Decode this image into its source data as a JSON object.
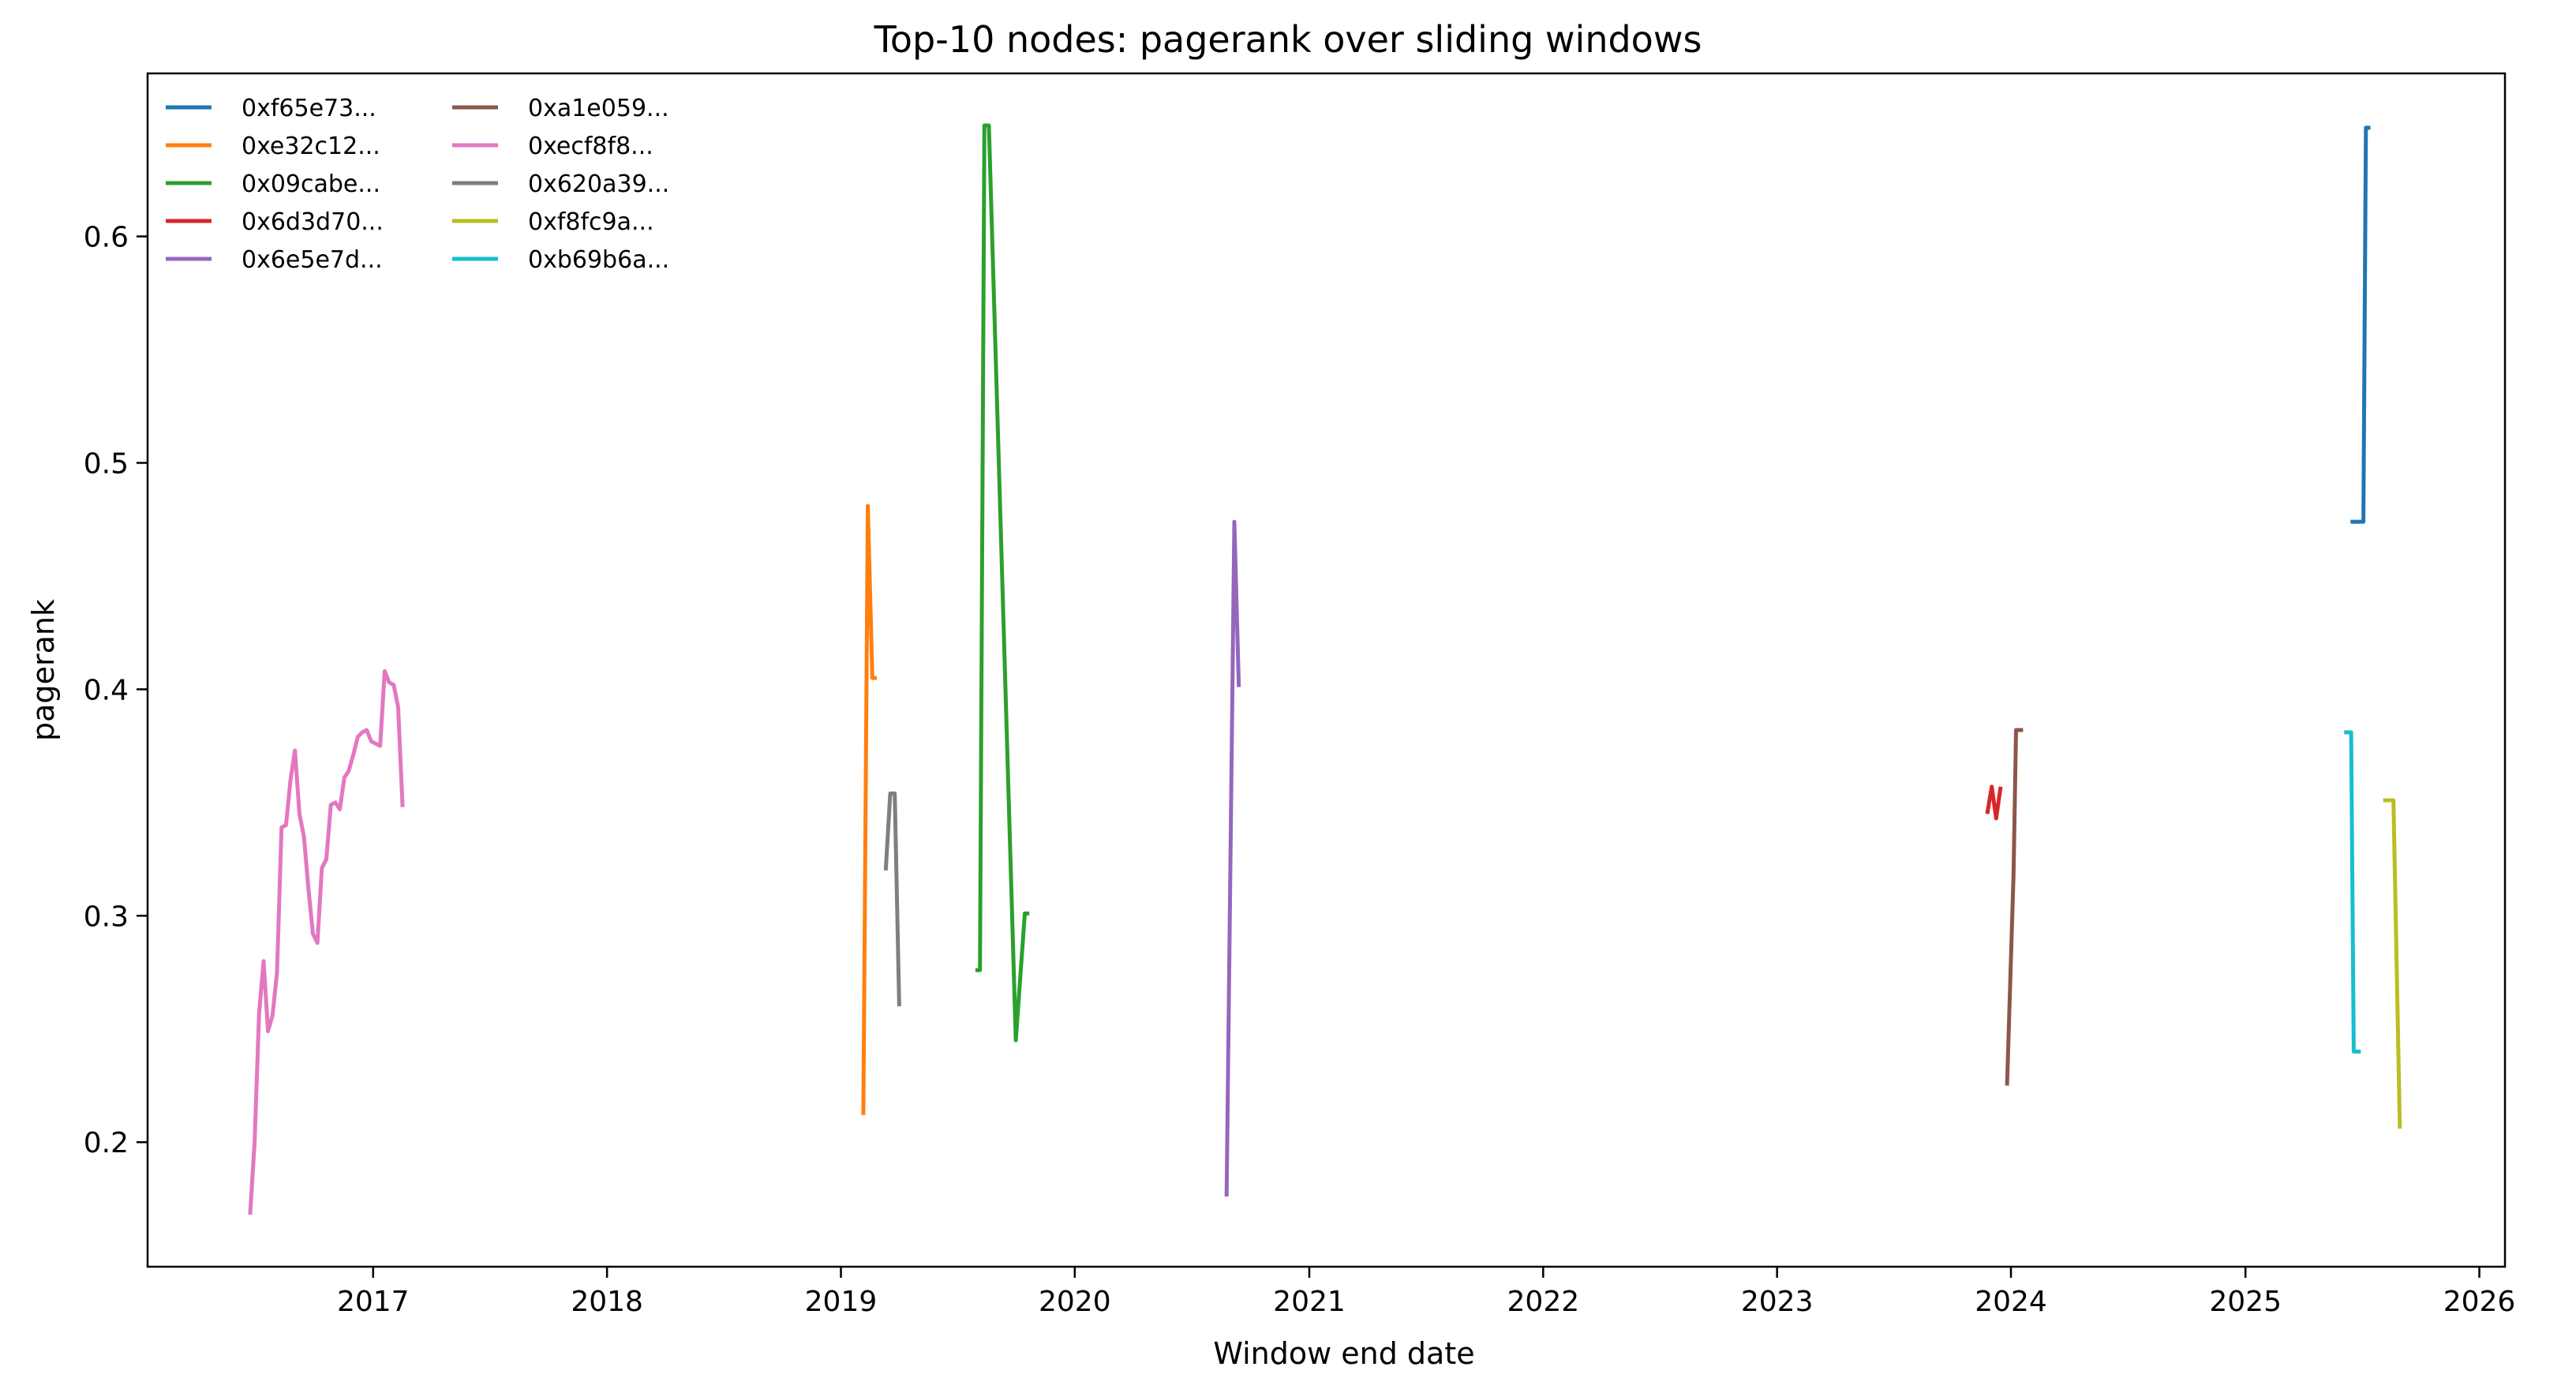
{
  "chart_data": {
    "type": "line",
    "title": "Top-10 nodes: pagerank over sliding windows",
    "xlabel": "Window end date",
    "ylabel": "pagerank",
    "xlim": [
      "2016-01-15",
      "2026-02-10"
    ],
    "ylim": [
      0.145,
      0.672
    ],
    "x_ticks": [
      "2017",
      "2018",
      "2019",
      "2020",
      "2021",
      "2022",
      "2023",
      "2024",
      "2025",
      "2026"
    ],
    "y_ticks": [
      0.2,
      0.3,
      0.4,
      0.5,
      0.6
    ],
    "grid": false,
    "legend_position": "top-left",
    "legend_columns": 2,
    "series": [
      {
        "name": "0xf65e73...",
        "color": "#1f77b4",
        "points": [
          [
            "2025-06-14",
            0.474
          ],
          [
            "2025-07-04",
            0.474
          ],
          [
            "2025-07-08",
            0.648
          ],
          [
            "2025-07-15",
            0.648
          ]
        ]
      },
      {
        "name": "0xe32c12...",
        "color": "#ff7f0e",
        "points": [
          [
            "2019-02-05",
            0.212
          ],
          [
            "2019-02-12",
            0.481
          ],
          [
            "2019-02-19",
            0.405
          ],
          [
            "2019-02-26",
            0.405
          ]
        ]
      },
      {
        "name": "0x09cabe...",
        "color": "#2ca02c",
        "points": [
          [
            "2019-07-30",
            0.276
          ],
          [
            "2019-08-06",
            0.276
          ],
          [
            "2019-08-13",
            0.649
          ],
          [
            "2019-08-20",
            0.649
          ],
          [
            "2019-10-01",
            0.245
          ],
          [
            "2019-10-15",
            0.301
          ],
          [
            "2019-10-22",
            0.301
          ]
        ]
      },
      {
        "name": "0x6d3d70...",
        "color": "#d62728",
        "points": [
          [
            "2023-11-25",
            0.345
          ],
          [
            "2023-12-02",
            0.357
          ],
          [
            "2023-12-09",
            0.343
          ],
          [
            "2023-12-16",
            0.357
          ]
        ]
      },
      {
        "name": "0x6e5e7d...",
        "color": "#9467bd",
        "points": [
          [
            "2020-08-25",
            0.176
          ],
          [
            "2020-09-06",
            0.474
          ],
          [
            "2020-09-13",
            0.401
          ]
        ]
      },
      {
        "name": "0xa1e059...",
        "color": "#8c564b",
        "points": [
          [
            "2023-12-26",
            0.225
          ],
          [
            "2024-01-05",
            0.318
          ],
          [
            "2024-01-09",
            0.382
          ],
          [
            "2024-01-20",
            0.382
          ]
        ]
      },
      {
        "name": "0xecf8f8...",
        "color": "#e377c2",
        "points": [
          [
            "2016-06-23",
            0.168
          ],
          [
            "2016-06-30",
            0.2
          ],
          [
            "2016-07-07",
            0.257
          ],
          [
            "2016-07-14",
            0.28
          ],
          [
            "2016-07-21",
            0.249
          ],
          [
            "2016-07-28",
            0.256
          ],
          [
            "2016-08-04",
            0.275
          ],
          [
            "2016-08-11",
            0.339
          ],
          [
            "2016-08-18",
            0.34
          ],
          [
            "2016-08-25",
            0.36
          ],
          [
            "2016-09-01",
            0.373
          ],
          [
            "2016-09-08",
            0.345
          ],
          [
            "2016-09-15",
            0.335
          ],
          [
            "2016-09-22",
            0.312
          ],
          [
            "2016-09-29",
            0.292
          ],
          [
            "2016-10-06",
            0.288
          ],
          [
            "2016-10-13",
            0.321
          ],
          [
            "2016-10-20",
            0.325
          ],
          [
            "2016-10-27",
            0.349
          ],
          [
            "2016-11-03",
            0.35
          ],
          [
            "2016-11-10",
            0.347
          ],
          [
            "2016-11-17",
            0.361
          ],
          [
            "2016-11-24",
            0.364
          ],
          [
            "2016-12-01",
            0.371
          ],
          [
            "2016-12-08",
            0.379
          ],
          [
            "2016-12-15",
            0.381
          ],
          [
            "2016-12-22",
            0.382
          ],
          [
            "2016-12-29",
            0.377
          ],
          [
            "2017-01-05",
            0.376
          ],
          [
            "2017-01-12",
            0.375
          ],
          [
            "2017-01-19",
            0.408
          ],
          [
            "2017-01-26",
            0.403
          ],
          [
            "2017-02-02",
            0.402
          ],
          [
            "2017-02-09",
            0.392
          ],
          [
            "2017-02-16",
            0.348
          ]
        ]
      },
      {
        "name": "0x620a39...",
        "color": "#7f7f7f",
        "points": [
          [
            "2019-03-12",
            0.32
          ],
          [
            "2019-03-19",
            0.354
          ],
          [
            "2019-03-26",
            0.354
          ],
          [
            "2019-04-02",
            0.26
          ]
        ]
      },
      {
        "name": "0xf8fc9a...",
        "color": "#bcbd22",
        "points": [
          [
            "2025-08-04",
            0.351
          ],
          [
            "2025-08-20",
            0.351
          ],
          [
            "2025-08-30",
            0.206
          ]
        ]
      },
      {
        "name": "0xb69b6a...",
        "color": "#17becf",
        "points": [
          [
            "2025-06-04",
            0.381
          ],
          [
            "2025-06-15",
            0.381
          ],
          [
            "2025-06-19",
            0.24
          ],
          [
            "2025-06-30",
            0.24
          ]
        ]
      }
    ]
  }
}
